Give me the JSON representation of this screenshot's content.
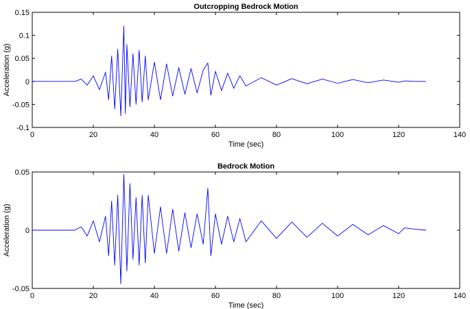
{
  "chart_data": [
    {
      "type": "line",
      "title": "Outcropping Bedrock Motion",
      "xlabel": "Time (sec)",
      "ylabel": "Acceleration (g)",
      "xlim": [
        0,
        140
      ],
      "ylim": [
        -0.1,
        0.15
      ],
      "xticks": [
        0,
        20,
        40,
        60,
        80,
        100,
        120,
        140
      ],
      "yticks": [
        -0.1,
        -0.05,
        0,
        0.05,
        0.1,
        0.15
      ],
      "xtick_labels": [
        "0",
        "20",
        "40",
        "60",
        "80",
        "100",
        "120",
        "140"
      ],
      "ytick_labels": [
        "-0.1",
        "-0.05",
        "0",
        "0.05",
        "0.1",
        "0.15"
      ],
      "grid": false,
      "line_color": "#0000ff",
      "series": [
        {
          "x": [
            0,
            14,
            16,
            18,
            20,
            22,
            24,
            25,
            26,
            27,
            28,
            29,
            30,
            30.5,
            31,
            32,
            33,
            34,
            35,
            36,
            37,
            38,
            40,
            42,
            44,
            46,
            48,
            50,
            52,
            54,
            56,
            57.5,
            58.5,
            60,
            62,
            64,
            66,
            68,
            70,
            75,
            80,
            85,
            90,
            95,
            100,
            105,
            110,
            115,
            120,
            122,
            125,
            129
          ],
          "y": [
            0,
            0,
            0.005,
            -0.008,
            0.012,
            -0.018,
            0.02,
            -0.04,
            0.055,
            -0.06,
            0.07,
            -0.075,
            0.12,
            -0.07,
            0.08,
            -0.055,
            0.06,
            -0.05,
            0.068,
            -0.045,
            0.055,
            -0.04,
            0.042,
            -0.04,
            0.038,
            -0.032,
            0.03,
            -0.028,
            0.028,
            -0.025,
            0.025,
            0.04,
            -0.03,
            0.022,
            -0.02,
            0.018,
            -0.015,
            0.012,
            -0.01,
            0.008,
            -0.008,
            0.006,
            -0.005,
            0.005,
            -0.004,
            0.004,
            -0.003,
            0.003,
            -0.002,
            0.001,
            0,
            0
          ]
        }
      ]
    },
    {
      "type": "line",
      "title": "Bedrock Motion",
      "xlabel": "Time (sec)",
      "ylabel": "Acceleration (g)",
      "xlim": [
        0,
        140
      ],
      "ylim": [
        -0.05,
        0.05
      ],
      "xticks": [
        0,
        20,
        40,
        60,
        80,
        100,
        120,
        140
      ],
      "yticks": [
        -0.05,
        0,
        0.05
      ],
      "xtick_labels": [
        "0",
        "20",
        "40",
        "60",
        "80",
        "100",
        "120",
        "140"
      ],
      "ytick_labels": [
        "-0.05",
        "0",
        "0.05"
      ],
      "grid": false,
      "line_color": "#0000ff",
      "series": [
        {
          "x": [
            0,
            14,
            16,
            18,
            20,
            22,
            24,
            25,
            26,
            27,
            28,
            29,
            30,
            31,
            32,
            33,
            34,
            35,
            36,
            37,
            38,
            40,
            42,
            44,
            46,
            48,
            50,
            52,
            54,
            56,
            57.5,
            58.5,
            60,
            62,
            64,
            66,
            68,
            70,
            75,
            80,
            85,
            90,
            95,
            100,
            105,
            110,
            115,
            120,
            122,
            125,
            129
          ],
          "y": [
            0,
            0,
            0.003,
            -0.005,
            0.008,
            -0.01,
            0.012,
            -0.022,
            0.025,
            -0.03,
            0.03,
            -0.046,
            0.048,
            -0.035,
            0.04,
            -0.025,
            0.028,
            -0.03,
            0.03,
            -0.028,
            0.03,
            -0.02,
            0.02,
            -0.02,
            0.018,
            -0.018,
            0.015,
            -0.015,
            0.014,
            -0.012,
            0.036,
            -0.022,
            0.014,
            -0.012,
            0.012,
            -0.01,
            0.01,
            -0.01,
            0.008,
            -0.007,
            0.007,
            -0.006,
            0.006,
            -0.005,
            0.005,
            -0.004,
            0.004,
            -0.003,
            0.002,
            0.001,
            0
          ]
        }
      ]
    }
  ]
}
